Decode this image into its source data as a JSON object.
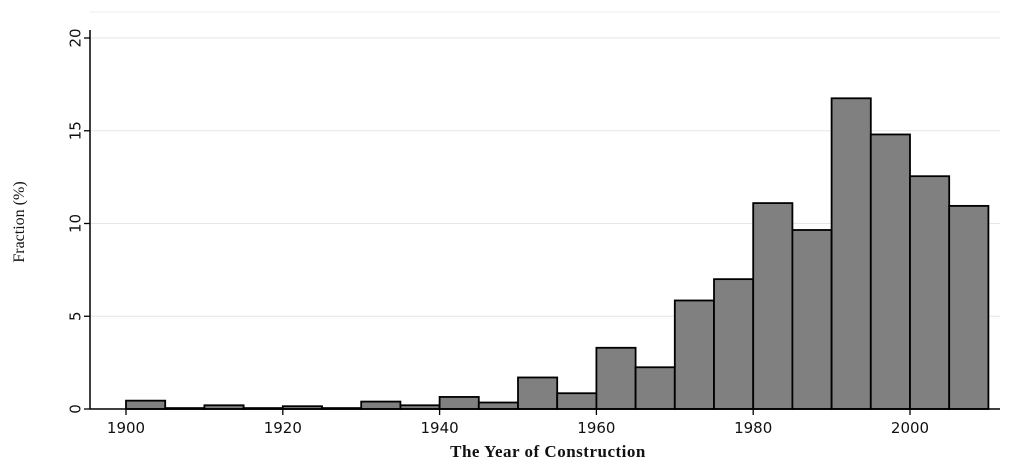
{
  "chart_data": {
    "type": "bar",
    "title": "",
    "xlabel": "The Year of Construction",
    "ylabel": "Fraction (%)",
    "bin_width": 5,
    "xlim": [
      1895,
      2010
    ],
    "ylim": [
      0,
      20
    ],
    "xticks": [
      1900,
      1920,
      1940,
      1960,
      1980,
      2000
    ],
    "yticks": [
      0,
      5,
      10,
      15,
      20
    ],
    "grid": true,
    "legend": "none",
    "bar_color": "#808080",
    "bins": [
      {
        "start": 1900,
        "value": 0.45
      },
      {
        "start": 1905,
        "value": 0.05
      },
      {
        "start": 1910,
        "value": 0.2
      },
      {
        "start": 1915,
        "value": 0.05
      },
      {
        "start": 1920,
        "value": 0.15
      },
      {
        "start": 1925,
        "value": 0.05
      },
      {
        "start": 1930,
        "value": 0.4
      },
      {
        "start": 1935,
        "value": 0.2
      },
      {
        "start": 1940,
        "value": 0.65
      },
      {
        "start": 1945,
        "value": 0.35
      },
      {
        "start": 1950,
        "value": 1.7
      },
      {
        "start": 1955,
        "value": 0.85
      },
      {
        "start": 1960,
        "value": 3.3
      },
      {
        "start": 1965,
        "value": 2.25
      },
      {
        "start": 1970,
        "value": 5.85
      },
      {
        "start": 1975,
        "value": 7.0
      },
      {
        "start": 1980,
        "value": 11.1
      },
      {
        "start": 1985,
        "value": 9.65
      },
      {
        "start": 1990,
        "value": 16.75
      },
      {
        "start": 1995,
        "value": 14.8
      },
      {
        "start": 2000,
        "value": 12.55
      },
      {
        "start": 2005,
        "value": 10.95
      }
    ]
  }
}
